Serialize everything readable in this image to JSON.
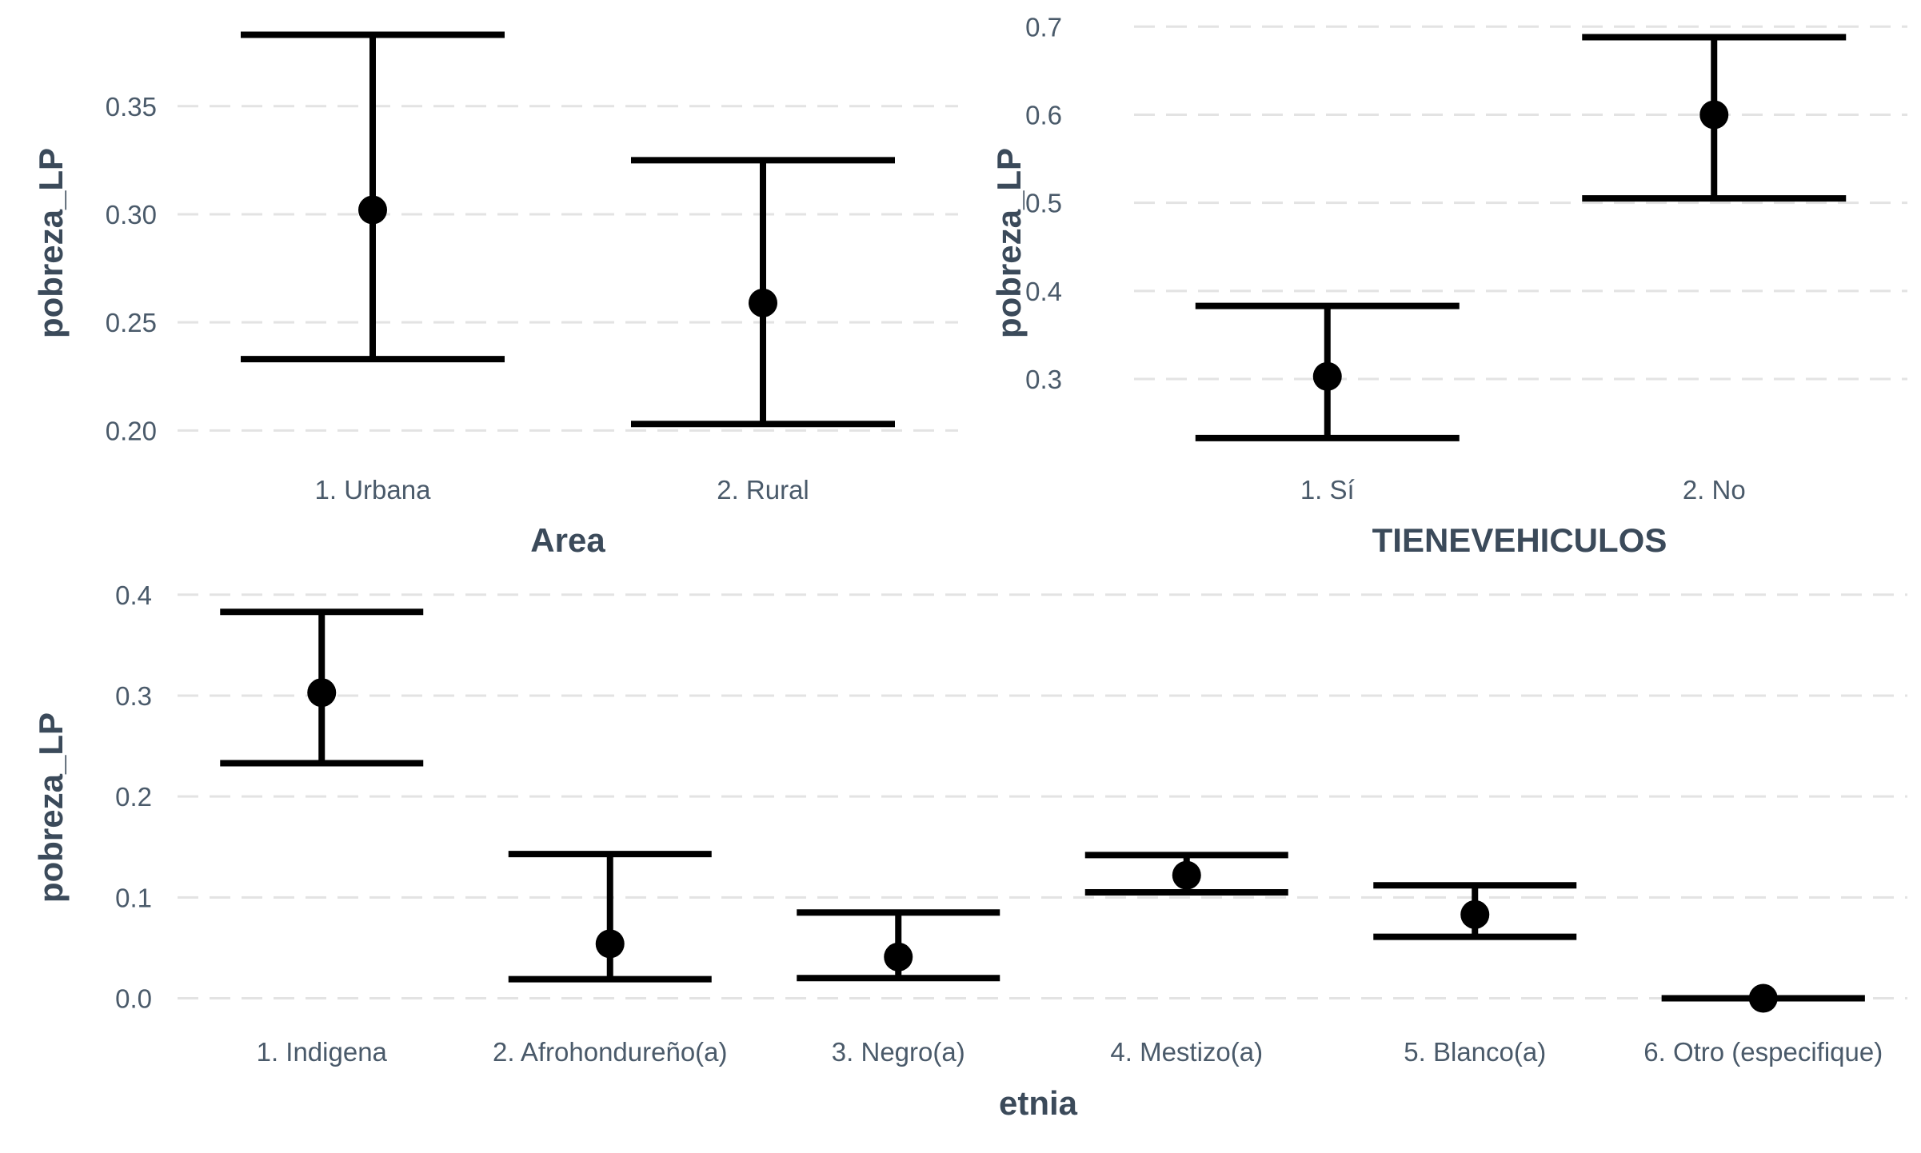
{
  "chart_data": [
    {
      "type": "errorbar",
      "xlabel": "Area",
      "ylabel": "pobreza_LP",
      "categories": [
        "1. Urbana",
        "2. Rural"
      ],
      "values": [
        0.302,
        0.259
      ],
      "lower": [
        0.233,
        0.203
      ],
      "upper": [
        0.383,
        0.325
      ],
      "ylim": [
        0.192,
        0.388
      ],
      "yticks": [
        0.2,
        0.25,
        0.3,
        0.35
      ],
      "ytick_labels": [
        "0.20",
        "0.25",
        "0.30",
        "0.35"
      ],
      "grid": true
    },
    {
      "type": "errorbar",
      "xlabel": "TIENEVEHICULOS",
      "ylabel": "pobreza_LP",
      "categories": [
        "1. Sí",
        "2. No"
      ],
      "values": [
        0.303,
        0.6
      ],
      "lower": [
        0.233,
        0.505
      ],
      "upper": [
        0.383,
        0.688
      ],
      "ylim": [
        0.222,
        0.703
      ],
      "yticks": [
        0.3,
        0.4,
        0.5,
        0.6,
        0.7
      ],
      "ytick_labels": [
        "0.3",
        "0.4",
        "0.5",
        "0.6",
        "0.7"
      ],
      "grid": true
    },
    {
      "type": "errorbar",
      "xlabel": "etnia",
      "ylabel": "pobreza_LP",
      "categories": [
        "1. Indigena",
        "2. Afrohondureño(a)",
        "3. Negro(a)",
        "4. Mestizo(a)",
        "5. Blanco(a)",
        "6. Otro (especifique)"
      ],
      "values": [
        0.303,
        0.054,
        0.041,
        0.122,
        0.083,
        0.0
      ],
      "lower": [
        0.233,
        0.019,
        0.02,
        0.105,
        0.061,
        0.0
      ],
      "upper": [
        0.383,
        0.143,
        0.085,
        0.142,
        0.112,
        0.0
      ],
      "ylim": [
        -0.017,
        0.403
      ],
      "yticks": [
        0.0,
        0.1,
        0.2,
        0.3,
        0.4
      ],
      "ytick_labels": [
        "0.0",
        "0.1",
        "0.2",
        "0.3",
        "0.4"
      ],
      "grid": true
    }
  ]
}
